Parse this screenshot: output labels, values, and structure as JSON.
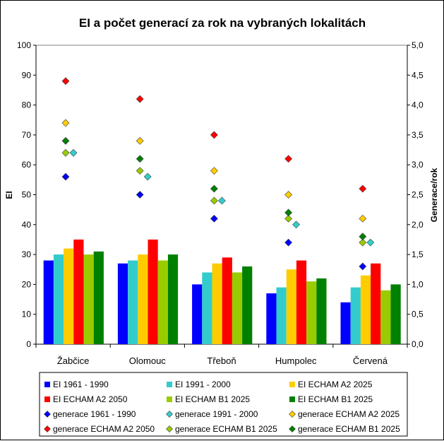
{
  "chart_data": {
    "type": "bar",
    "title": "EI a počet generací za rok na vybraných lokalitách",
    "categories": [
      "Žabčice",
      "Olomouc",
      "Třeboň",
      "Humpolec",
      "Červená"
    ],
    "ylabel": "EI",
    "y2label": "Generace/rok",
    "ylim": [
      0,
      100
    ],
    "y2lim": [
      0,
      5
    ],
    "yticks": [
      "0",
      "10",
      "20",
      "30",
      "40",
      "50",
      "60",
      "70",
      "80",
      "90",
      "100"
    ],
    "y2ticks": [
      "0,0",
      "0,5",
      "1,0",
      "1,5",
      "2,0",
      "2,5",
      "3,0",
      "3,5",
      "4,0",
      "4,5",
      "5,0"
    ],
    "grid": false,
    "legend_position": "bottom",
    "bar_series": [
      {
        "name": "EI 1961 - 1990",
        "color": "#0000FF",
        "values": [
          28,
          27,
          20,
          17,
          14
        ]
      },
      {
        "name": "EI 1991 - 2000",
        "color": "#33CCCC",
        "values": [
          30,
          28,
          24,
          19,
          19
        ]
      },
      {
        "name": "EI ECHAM A2 2025",
        "color": "#FFCC00",
        "values": [
          32,
          30,
          27,
          25,
          23
        ]
      },
      {
        "name": "EI ECHAM A2 2050",
        "color": "#FF0000",
        "values": [
          35,
          35,
          29,
          28,
          27
        ]
      },
      {
        "name": "EI ECHAM B1 2025",
        "color": "#99CC00",
        "values": [
          30,
          28,
          24,
          21,
          18
        ]
      },
      {
        "name": "EI ECHAM B1 2025",
        "color": "#008000",
        "values": [
          31,
          30,
          26,
          22,
          20
        ]
      }
    ],
    "marker_series": [
      {
        "name": "generace 1961 - 1990",
        "color": "#0000FF",
        "values": [
          2.8,
          2.5,
          2.1,
          1.7,
          1.3
        ]
      },
      {
        "name": "generace 1991 - 2000",
        "color": "#33CCCC",
        "values": [
          3.2,
          2.8,
          2.4,
          2.0,
          1.7
        ]
      },
      {
        "name": "generace ECHAM A2 2025",
        "color": "#FFCC00",
        "values": [
          3.7,
          3.4,
          2.9,
          2.5,
          2.1
        ]
      },
      {
        "name": "generace ECHAM A2 2050",
        "color": "#FF0000",
        "values": [
          4.4,
          4.1,
          3.5,
          3.1,
          2.6
        ]
      },
      {
        "name": "generace ECHAM B1 2025",
        "color": "#99CC00",
        "values": [
          3.2,
          2.9,
          2.4,
          2.1,
          1.7
        ]
      },
      {
        "name": "generace ECHAM B1 2025",
        "color": "#008000",
        "values": [
          3.4,
          3.1,
          2.6,
          2.2,
          1.8
        ]
      }
    ]
  }
}
